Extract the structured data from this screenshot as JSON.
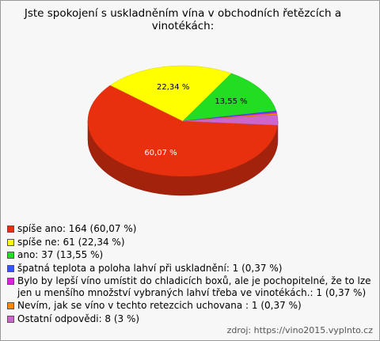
{
  "chart_data": {
    "type": "pie",
    "title": "Jste spokojení s uskladněním vína v obchodních řetězcích a vinotékách:",
    "categories": [
      "spíše ano: 164 (60,07 %)",
      "spíše ne: 61 (22,34 %)",
      "ano: 37 (13,55 %)",
      "špatná teplota a poloha lahví při uskladnění: 1 (0,37 %)",
      "Bylo by lepší víno umístit do chladicích boxů, ale je pochopitelné, že to lze jen u menšího množství vybraných lahví třeba ve vinotékách.: 1 (0,37 %)",
      "Nevím, jak se víno v techto retezcich uchovana : 1 (0,37 %)",
      "Ostatní odpovědi: 8 (3 %)"
    ],
    "values": [
      60.07,
      22.34,
      13.55,
      0.37,
      0.37,
      0.37,
      3
    ],
    "value_labels": [
      "60,07 %",
      "22,34 %",
      "13,55 %",
      null,
      null,
      null,
      null
    ],
    "colors": [
      "#e8300f",
      "#ffff00",
      "#22dd22",
      "#3355ff",
      "#dd22dd",
      "#ff8800",
      "#cc66cc"
    ],
    "legend": "bottom-left"
  },
  "source": "zdroj: https://vino2015.vyplnto.cz"
}
